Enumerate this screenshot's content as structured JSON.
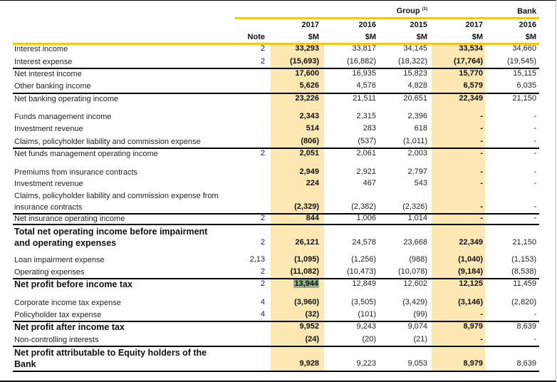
{
  "header": {
    "group": "Group",
    "group_note": "(1)",
    "bank": "Bank",
    "note": "Note",
    "years": [
      "2017",
      "2016",
      "2015",
      "2017",
      "2016"
    ],
    "unit": "$M"
  },
  "rows": [
    {
      "label": "Interest income",
      "note": "2",
      "values": [
        "33,293",
        "33,817",
        "34,145",
        "33,534",
        "34,660"
      ]
    },
    {
      "label": "Interest expense",
      "note": "2",
      "values": [
        "(15,693)",
        "(16,882)",
        "(18,322)",
        "(17,764)",
        "(19,545)"
      ]
    },
    {
      "label": "Net interest income",
      "note": "",
      "values": [
        "17,600",
        "16,935",
        "15,823",
        "15,770",
        "15,115"
      ]
    },
    {
      "label": "Other banking income",
      "note": "",
      "values": [
        "5,626",
        "4,576",
        "4,828",
        "6,579",
        "6,035"
      ]
    },
    {
      "label": "Net banking operating income",
      "note": "",
      "values": [
        "23,226",
        "21,511",
        "20,651",
        "22,349",
        "21,150"
      ]
    },
    {
      "label": "Funds management income",
      "note": "",
      "values": [
        "2,343",
        "2,315",
        "2,396",
        "-",
        "-"
      ]
    },
    {
      "label": "Investment revenue",
      "note": "",
      "values": [
        "514",
        "283",
        "618",
        "-",
        "-"
      ]
    },
    {
      "label": "Claims, policyholder liability and commission expense",
      "note": "",
      "values": [
        "(806)",
        "(537)",
        "(1,011)",
        "-",
        "-"
      ]
    },
    {
      "label": "Net funds management operating income",
      "note": "2",
      "values": [
        "2,051",
        "2,061",
        "2,003",
        "-",
        "-"
      ]
    },
    {
      "label": "Premiums from insurance contracts",
      "note": "",
      "values": [
        "2,949",
        "2,921",
        "2,797",
        "-",
        "-"
      ]
    },
    {
      "label": "Investment revenue",
      "note": "",
      "values": [
        "224",
        "467",
        "543",
        "-",
        "-"
      ]
    },
    {
      "label": "Claims, policyholder liability and commission expense from insurance contracts",
      "note": "",
      "values": [
        "(2,329)",
        "(2,382)",
        "(2,326)",
        "-",
        "-"
      ]
    },
    {
      "label": "Net insurance operating income",
      "note": "2",
      "values": [
        "844",
        "1,006",
        "1,014",
        "-",
        "-"
      ]
    },
    {
      "label": "Total net operating income before impairment and operating expenses",
      "note": "2",
      "values": [
        "26,121",
        "24,578",
        "23,668",
        "22,349",
        "21,150"
      ]
    },
    {
      "label": "Loan impairment expense",
      "note": "2,13",
      "values": [
        "(1,095)",
        "(1,256)",
        "(988)",
        "(1,040)",
        "(1,153)"
      ]
    },
    {
      "label": "Operating expenses",
      "note": "2",
      "values": [
        "(11,082)",
        "(10,473)",
        "(10,078)",
        "(9,184)",
        "(8,538)"
      ]
    },
    {
      "label": "Net profit before income tax",
      "note": "2",
      "values": [
        "13,944",
        "12,849",
        "12,602",
        "12,125",
        "11,459"
      ]
    },
    {
      "label": "Corporate income tax expense",
      "note": "4",
      "values": [
        "(3,960)",
        "(3,505)",
        "(3,429)",
        "(3,146)",
        "(2,820)"
      ]
    },
    {
      "label": "Policyholder tax expense",
      "note": "4",
      "values": [
        "(32)",
        "(101)",
        "(99)",
        "-",
        "-"
      ]
    },
    {
      "label": "Net profit after income tax",
      "note": "",
      "values": [
        "9,952",
        "9,243",
        "9,074",
        "8,979",
        "8,639"
      ]
    },
    {
      "label": "Non-controlling interests",
      "note": "",
      "values": [
        "(24)",
        "(20)",
        "(21)",
        "-",
        "-"
      ]
    },
    {
      "label": "Net profit attributable to Equity holders of the Bank",
      "note": "",
      "values": [
        "9,928",
        "9,223",
        "9,053",
        "8,979",
        "8,639"
      ]
    }
  ]
}
